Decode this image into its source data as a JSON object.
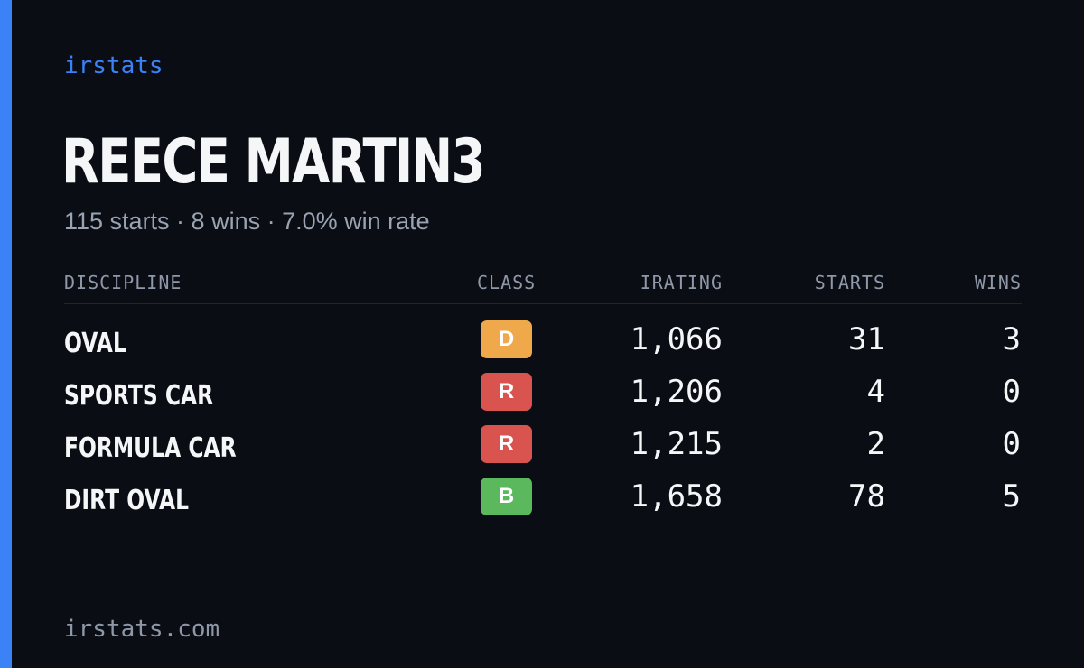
{
  "brand": "irstats",
  "driver": {
    "name": "REECE MARTIN3",
    "summary": "115 starts · 8 wins · 7.0% win rate"
  },
  "table": {
    "headers": {
      "discipline": "DISCIPLINE",
      "class": "CLASS",
      "irating": "IRATING",
      "starts": "STARTS",
      "wins": "WINS"
    },
    "rows": [
      {
        "discipline": "OVAL",
        "class": "D",
        "class_color": "#f0a94a",
        "irating": "1,066",
        "starts": "31",
        "wins": "3"
      },
      {
        "discipline": "SPORTS CAR",
        "class": "R",
        "class_color": "#d9534f",
        "irating": "1,206",
        "starts": "4",
        "wins": "0"
      },
      {
        "discipline": "FORMULA CAR",
        "class": "R",
        "class_color": "#d9534f",
        "irating": "1,215",
        "starts": "2",
        "wins": "0"
      },
      {
        "discipline": "DIRT OVAL",
        "class": "B",
        "class_color": "#5cb85c",
        "irating": "1,658",
        "starts": "78",
        "wins": "5"
      }
    ]
  },
  "footer": "irstats.com",
  "colors": {
    "background": "#0a0d14",
    "accent": "#3b82f6",
    "text": "#f5f6f8",
    "muted": "#9aa3b2"
  }
}
